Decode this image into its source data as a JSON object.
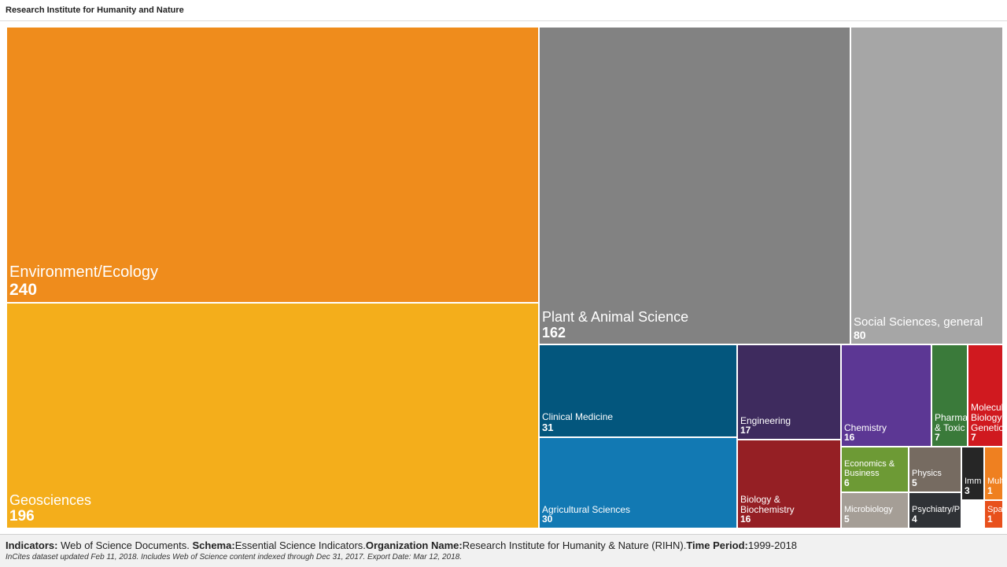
{
  "header": {
    "title": "Research Institute for Humanity and Nature"
  },
  "chart_data": {
    "type": "treemap",
    "title": "",
    "items": [
      {
        "name": "Environment/Ecology",
        "value": 240,
        "color": "#ef8c1c"
      },
      {
        "name": "Geosciences",
        "value": 196,
        "color": "#f4ae1b"
      },
      {
        "name": "Plant & Animal Science",
        "value": 162,
        "color": "#828282"
      },
      {
        "name": "Social Sciences, general",
        "value": 80,
        "color": "#a6a6a6"
      },
      {
        "name": "Clinical Medicine",
        "value": 31,
        "color": "#03567d"
      },
      {
        "name": "Agricultural Sciences",
        "value": 30,
        "color": "#1279b3"
      },
      {
        "name": "Engineering",
        "value": 17,
        "color": "#3e2b5e"
      },
      {
        "name": "Chemistry",
        "value": 16,
        "color": "#5c3794"
      },
      {
        "name": "Biology & Biochemistry",
        "value": 16,
        "color": "#951f24"
      },
      {
        "name": "Pharmacology & Toxicology",
        "value": 7,
        "color": "#3a7a3a"
      },
      {
        "name": "Molecular Biology & Genetics",
        "value": 7,
        "color": "#d0191f"
      },
      {
        "name": "Economics & Business",
        "value": 6,
        "color": "#6d9a35"
      },
      {
        "name": "Physics",
        "value": 5,
        "color": "#766b61"
      },
      {
        "name": "Microbiology",
        "value": 5,
        "color": "#a59e96"
      },
      {
        "name": "Psychiatry/Psychology",
        "value": 4,
        "color": "#2f3236"
      },
      {
        "name": "Immunology",
        "value": 3,
        "color": "#262626"
      },
      {
        "name": "Multidisciplinary",
        "value": 1,
        "color": "#ef8020"
      },
      {
        "name": "Space Science",
        "value": 1,
        "color": "#e8501c"
      }
    ]
  },
  "footer": {
    "indicators_label": "Indicators:",
    "indicators_value": " Web of Science Documents. ",
    "schema_label": "Schema:",
    "schema_value": "Essential Science Indicators.",
    "org_label": "Organization Name:",
    "org_value": "Research Institute for Humanity & Nature (RIHN).",
    "period_label": "Time Period:",
    "period_value": "1999-2018",
    "note": "InCites dataset updated Feb 11, 2018. Includes Web of Science content indexed through Dec 31, 2017. Export Date: Mar 12, 2018."
  }
}
